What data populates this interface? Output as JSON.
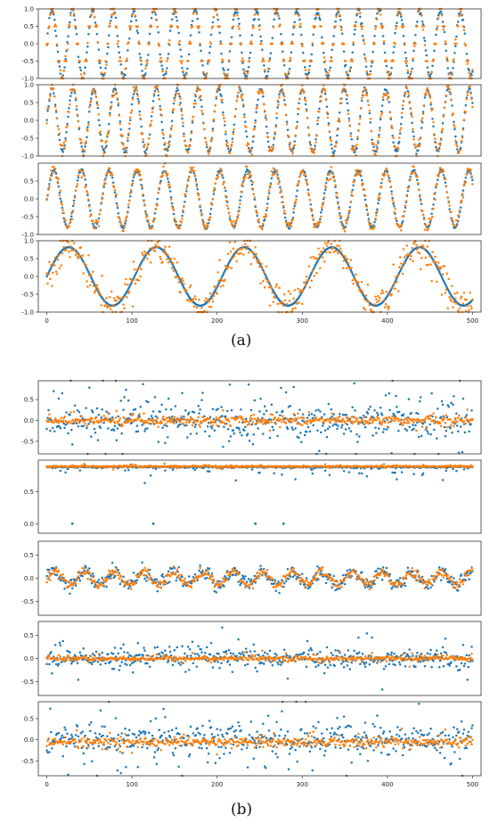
{
  "captions": {
    "a": "(a)",
    "b": "(b)"
  },
  "colors": {
    "series1": "#1f77b4",
    "series2": "#ff7f0e",
    "axis": "#333333"
  },
  "chart_data": [
    {
      "type": "scatter",
      "group": "a",
      "xlim": [
        -10,
        510
      ],
      "ylim": [
        -1.0,
        1.0
      ],
      "yticks": [
        -1.0,
        -0.5,
        0.0,
        0.5,
        1.0
      ],
      "xticks": [],
      "show_x_ticklabels": false,
      "series": [
        {
          "color": "#1f77b4",
          "pattern": "sine",
          "amplitude": 0.95,
          "period": 24,
          "phase": 0,
          "noise": 0.05
        },
        {
          "color": "#ff7f0e",
          "pattern": "sampled_sine",
          "amplitude": 0.95,
          "period": 24,
          "phase": 0,
          "noise": 0.05
        }
      ]
    },
    {
      "type": "scatter",
      "group": "a",
      "xlim": [
        -10,
        510
      ],
      "ylim": [
        -1.0,
        1.0
      ],
      "yticks": [
        -1.0,
        -0.5,
        0.0,
        0.5,
        1.0
      ],
      "xticks": [],
      "show_x_ticklabels": false,
      "series": [
        {
          "color": "#1f77b4",
          "pattern": "sine",
          "amplitude": 0.88,
          "period": 24.5,
          "phase": 0,
          "noise": 0.03
        },
        {
          "color": "#ff7f0e",
          "pattern": "sine",
          "amplitude": 0.88,
          "period": 24.5,
          "phase": 0,
          "noise": 0.1
        }
      ]
    },
    {
      "type": "scatter",
      "group": "a",
      "xlim": [
        -10,
        510
      ],
      "ylim": [
        -1.0,
        1.0
      ],
      "yticks": [
        -1.0,
        -0.5,
        0.0,
        0.5
      ],
      "xticks": [],
      "show_x_ticklabels": false,
      "series": [
        {
          "color": "#1f77b4",
          "pattern": "sine",
          "amplitude": 0.8,
          "period": 32.5,
          "phase": 0,
          "noise": 0.02
        },
        {
          "color": "#ff7f0e",
          "pattern": "sine",
          "amplitude": 0.8,
          "period": 32.5,
          "phase": 0,
          "noise": 0.08
        }
      ]
    },
    {
      "type": "scatter",
      "group": "a",
      "xlim": [
        -10,
        510
      ],
      "ylim": [
        -1.0,
        1.0
      ],
      "yticks": [
        -1.0,
        -0.5,
        0.0,
        0.5,
        1.0
      ],
      "xticks": [
        0,
        100,
        200,
        300,
        400,
        500
      ],
      "show_x_ticklabels": true,
      "series": [
        {
          "color": "#1f77b4",
          "pattern": "sine",
          "amplitude": 0.82,
          "period": 103,
          "phase": 0,
          "noise": 0.0
        },
        {
          "color": "#ff7f0e",
          "pattern": "sine",
          "amplitude": 0.82,
          "period": 103,
          "phase": 0,
          "noise": 0.22
        }
      ]
    },
    {
      "type": "scatter",
      "group": "b",
      "xlim": [
        -10,
        510
      ],
      "ylim": [
        -0.8,
        0.95
      ],
      "yticks": [
        -0.5,
        0.0,
        0.5
      ],
      "xticks": [],
      "show_x_ticklabels": false,
      "series": [
        {
          "color": "#1f77b4",
          "pattern": "noise",
          "center": 0.0,
          "spread": 0.32
        },
        {
          "color": "#ff7f0e",
          "pattern": "noise",
          "center": 0.0,
          "spread": 0.07
        }
      ]
    },
    {
      "type": "scatter",
      "group": "b",
      "xlim": [
        -10,
        510
      ],
      "ylim": [
        -0.15,
        1.0
      ],
      "yticks": [
        0.0,
        0.5
      ],
      "xticks": [],
      "show_x_ticklabels": false,
      "series": [
        {
          "color": "#1f77b4",
          "pattern": "top_band",
          "center": 0.9,
          "spread": 0.06,
          "outliers": [
            [
              30,
              0.0
            ],
            [
              125,
              0.0
            ],
            [
              245,
              0.0
            ],
            [
              278,
              0.0
            ]
          ]
        },
        {
          "color": "#ff7f0e",
          "pattern": "noise",
          "center": 0.9,
          "spread": 0.01
        }
      ]
    },
    {
      "type": "scatter",
      "group": "b",
      "xlim": [
        -10,
        510
      ],
      "ylim": [
        -0.8,
        0.8
      ],
      "yticks": [
        -0.5,
        0.0,
        0.5
      ],
      "xticks": [],
      "show_x_ticklabels": false,
      "series": [
        {
          "color": "#1f77b4",
          "pattern": "sine",
          "amplitude": 0.14,
          "period": 35,
          "phase": 0,
          "noise": 0.08
        },
        {
          "color": "#ff7f0e",
          "pattern": "sine",
          "amplitude": 0.14,
          "period": 35,
          "phase": 0,
          "noise": 0.05
        }
      ]
    },
    {
      "type": "scatter",
      "group": "b",
      "xlim": [
        -10,
        510
      ],
      "ylim": [
        -0.8,
        0.8
      ],
      "yticks": [
        -0.5,
        0.0,
        0.5
      ],
      "xticks": [],
      "show_x_ticklabels": false,
      "series": [
        {
          "color": "#1f77b4",
          "pattern": "noise",
          "center": 0.0,
          "spread": 0.16
        },
        {
          "color": "#ff7f0e",
          "pattern": "noise",
          "center": 0.0,
          "spread": 0.04
        }
      ]
    },
    {
      "type": "scatter",
      "group": "b",
      "xlim": [
        -10,
        510
      ],
      "ylim": [
        -0.85,
        0.9
      ],
      "yticks": [
        -0.5,
        0.0,
        0.5
      ],
      "xticks": [
        0,
        100,
        200,
        300,
        400,
        500
      ],
      "show_x_ticklabels": true,
      "series": [
        {
          "color": "#1f77b4",
          "pattern": "noise",
          "center": 0.0,
          "spread": 0.3
        },
        {
          "color": "#ff7f0e",
          "pattern": "noise",
          "center": -0.05,
          "spread": 0.08
        }
      ]
    }
  ]
}
